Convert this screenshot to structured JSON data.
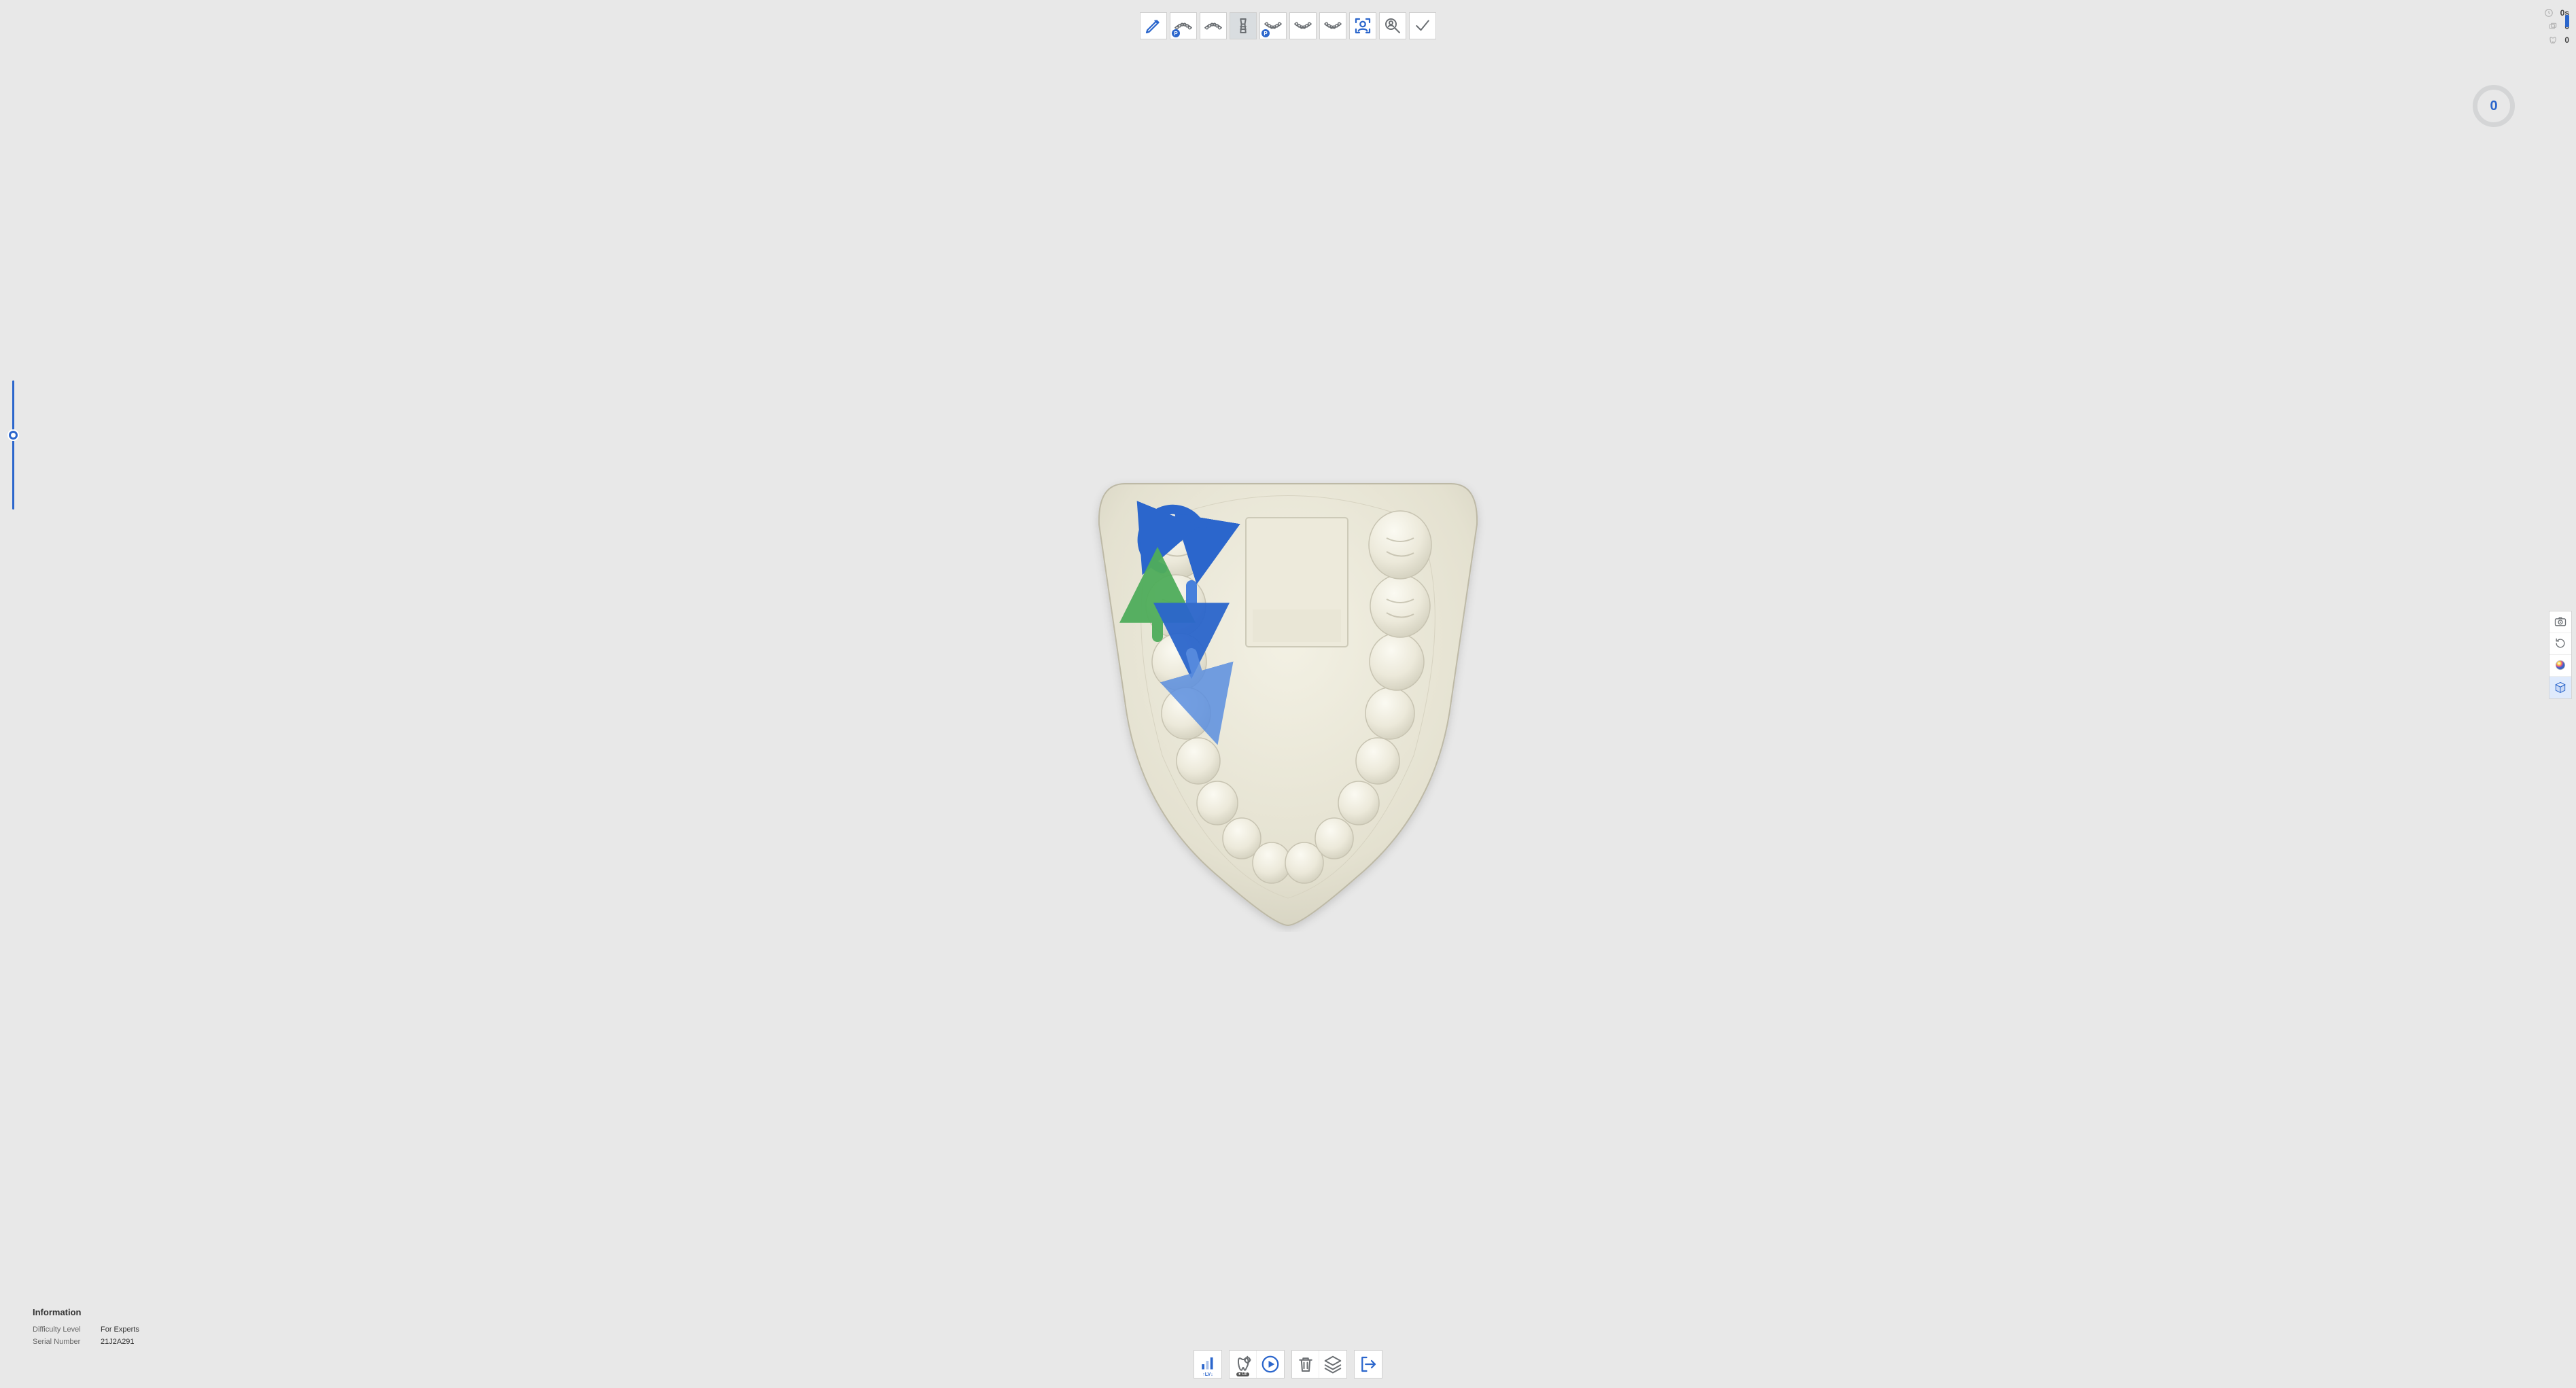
{
  "colors": {
    "bg": "#e8e8e8",
    "panel_bg": "#ffffff",
    "border": "#d0d0d0",
    "accent_blue": "#2b66cc",
    "accent_blue_light": "#5b8fe0",
    "accent_green": "#4fad5b",
    "model_base": "#e9e7d9",
    "model_shadow": "#c9c7b8",
    "score_ring": "#d4d5d6",
    "text": "#333333",
    "text_muted": "#666666"
  },
  "top_toolbar": [
    {
      "name": "edit-tool",
      "icon": "pencil",
      "active": false
    },
    {
      "name": "upper-jaw-p-tool",
      "icon": "jaw-upper",
      "badge": "P",
      "active": false
    },
    {
      "name": "upper-jaw-tool",
      "icon": "jaw-upper",
      "active": false
    },
    {
      "name": "implant-tool",
      "icon": "implant",
      "active": true
    },
    {
      "name": "lower-jaw-p-tool",
      "icon": "jaw-lower",
      "badge": "P",
      "active": false
    },
    {
      "name": "lower-jaw-tool",
      "icon": "jaw-lower",
      "active": false
    },
    {
      "name": "lower-jaw-tool-2",
      "icon": "jaw-lower",
      "active": false
    },
    {
      "name": "person-focus-tool",
      "icon": "person-viewfinder",
      "active": false
    },
    {
      "name": "person-zoom-tool",
      "icon": "person-magnify",
      "active": false
    },
    {
      "name": "confirm-tool",
      "icon": "check",
      "active": false
    }
  ],
  "top_stats": {
    "time": "0s",
    "cards": "0",
    "restorations": "0"
  },
  "score": "0",
  "right_panel": [
    {
      "name": "screenshot-tool",
      "icon": "camera"
    },
    {
      "name": "rotate-tool",
      "icon": "rotate"
    },
    {
      "name": "color-tool",
      "icon": "color-sphere"
    },
    {
      "name": "cube-view-tool",
      "icon": "cube",
      "highlight": true
    }
  ],
  "left_slider": {
    "value": 0.4
  },
  "info": {
    "title": "Information",
    "rows": [
      {
        "label": "Difficulty Level",
        "value": "For Experts"
      },
      {
        "label": "Serial Number",
        "value": "21J2A291"
      }
    ]
  },
  "bottom_toolbar": {
    "groups": [
      [
        {
          "name": "level-indicator",
          "icon": "levels"
        }
      ],
      [
        {
          "name": "tooth-settings-tool",
          "icon": "tooth-gear"
        },
        {
          "name": "play-tool",
          "icon": "play-circle"
        }
      ],
      [
        {
          "name": "delete-tool",
          "icon": "trash"
        },
        {
          "name": "layers-tool",
          "icon": "layers"
        }
      ],
      [
        {
          "name": "exit-tool",
          "icon": "exit"
        }
      ]
    ],
    "level_label": "LV",
    "toggle_label": "Off"
  },
  "model": {
    "description": "Maxillary dental arch occlusal view with palate plate",
    "arrow_overlay": {
      "rotation_color": "#2b66cc",
      "down_color_1": "#3f7bdc",
      "down_color_2": "#5b8fe0",
      "up_color": "#4fad5b"
    }
  }
}
